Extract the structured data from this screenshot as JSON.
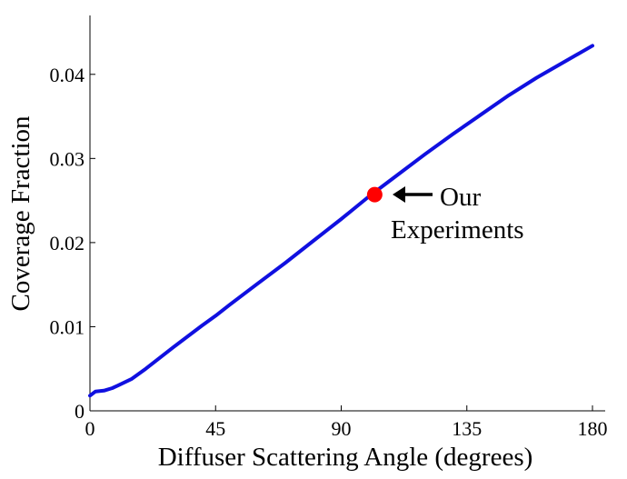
{
  "chart_data": {
    "type": "line",
    "xlabel": "Diffuser Scattering Angle (degrees)",
    "ylabel": "Coverage Fraction",
    "xlim": [
      0,
      180
    ],
    "ylim": [
      0,
      0.047
    ],
    "xticks": [
      0,
      45,
      90,
      135,
      180
    ],
    "xtick_labels": [
      "0",
      "45",
      "90",
      "135",
      "180"
    ],
    "yticks": [
      0,
      0.01,
      0.02,
      0.03,
      0.04
    ],
    "ytick_labels": [
      "0",
      "0.01",
      "0.02",
      "0.03",
      "0.04"
    ],
    "grid": false,
    "series": [
      {
        "color": "#1010e0",
        "x": [
          0,
          2,
          5,
          8,
          10,
          15,
          20,
          25,
          30,
          40,
          45,
          50,
          60,
          70,
          80,
          90,
          100,
          110,
          120,
          130,
          140,
          150,
          160,
          170,
          180
        ],
        "y": [
          0.0018,
          0.0023,
          0.0024,
          0.0027,
          0.003,
          0.0038,
          0.005,
          0.0063,
          0.0076,
          0.0101,
          0.0113,
          0.0126,
          0.0151,
          0.0176,
          0.0202,
          0.0228,
          0.0255,
          0.028,
          0.0305,
          0.0329,
          0.0352,
          0.0375,
          0.0396,
          0.0415,
          0.0434
        ]
      }
    ],
    "marker": {
      "x": 102,
      "y": 0.0257,
      "color": "#ff0000"
    },
    "annotation": {
      "lines": [
        "Our",
        "Experiments"
      ]
    }
  }
}
